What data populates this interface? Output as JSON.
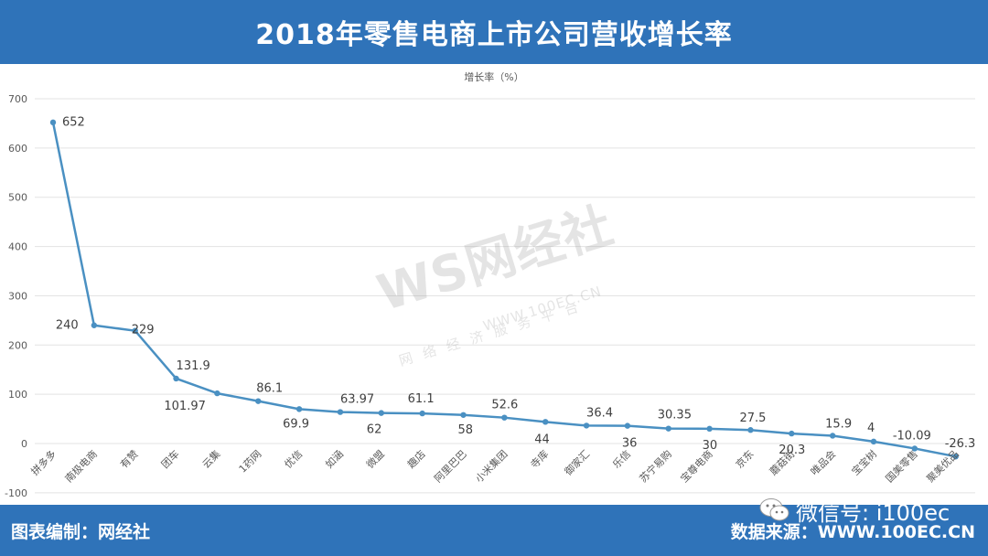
{
  "header": {
    "title": "2018年零售电商上市公司营收增长率"
  },
  "footer": {
    "left": "图表编制：网经社",
    "right": "数据来源：WWW.100EC.CN",
    "wechat": "微信号: i100ec"
  },
  "watermark": {
    "logo": "WS网经社",
    "url": "WWW.100EC.CN",
    "tagline": "网络经济服务平台"
  },
  "colors": {
    "header_bg": "#2f73b9",
    "line": "#4a90c2",
    "grid": "#e3e3e3",
    "text": "#595959"
  },
  "chart_data": {
    "type": "line",
    "title": "增长率（%）",
    "ylim": [
      -100,
      700
    ],
    "yticks": [
      -100,
      0,
      100,
      200,
      300,
      400,
      500,
      600,
      700
    ],
    "grid": true,
    "categories": [
      "拼多多",
      "南极电商",
      "有赞",
      "团车",
      "云集",
      "1药网",
      "优信",
      "如涵",
      "微盟",
      "趣店",
      "阿里巴巴",
      "小米集团",
      "寺库",
      "御家汇",
      "乐信",
      "苏宁易购",
      "宝尊电商",
      "京东",
      "蘑菇街",
      "唯品会",
      "宝宝树",
      "国美零售",
      "聚美优品"
    ],
    "values": [
      652,
      240,
      229,
      131.9,
      101.97,
      86.1,
      69.9,
      63.97,
      62,
      61.1,
      58,
      52.6,
      44,
      36.4,
      36,
      30.35,
      30,
      27.5,
      20.3,
      15.9,
      4,
      -10.09,
      -26.3
    ],
    "labels": [
      "652",
      "240",
      "229",
      "131.9",
      "101.97",
      "86.1",
      "69.9",
      "63.97",
      "62",
      "61.1",
      "58",
      "52.6",
      "44",
      "36.4",
      "36",
      "30.35",
      "30",
      "27.5",
      "20.3",
      "15.9",
      "4",
      "-10.09",
      "-26.3"
    ]
  }
}
